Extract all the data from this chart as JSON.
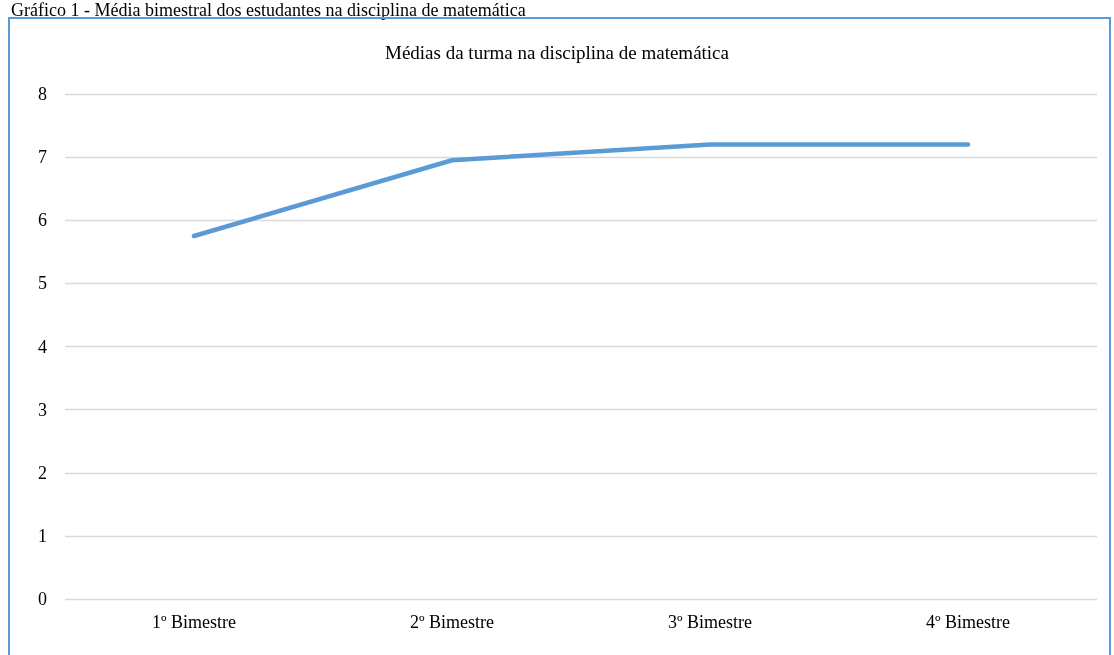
{
  "chart_data": {
    "type": "line",
    "title": "Médias da turma na disciplina de matemática",
    "annotations": [
      "Gráfico 1 - Média bimestral dos estudantes na disciplina de matemática"
    ],
    "categories": [
      "1º Bimestre",
      "2º Bimestre",
      "3º Bimestre",
      "4º Bimestre"
    ],
    "series": [
      {
        "color": "#5b9bd5",
        "values": [
          5.75,
          6.95,
          7.2,
          7.2
        ]
      }
    ],
    "ylim": [
      0,
      8
    ],
    "yticks": [
      0,
      1,
      2,
      3,
      4,
      5,
      6,
      7,
      8
    ],
    "grid": "y",
    "line_style": "solid"
  }
}
